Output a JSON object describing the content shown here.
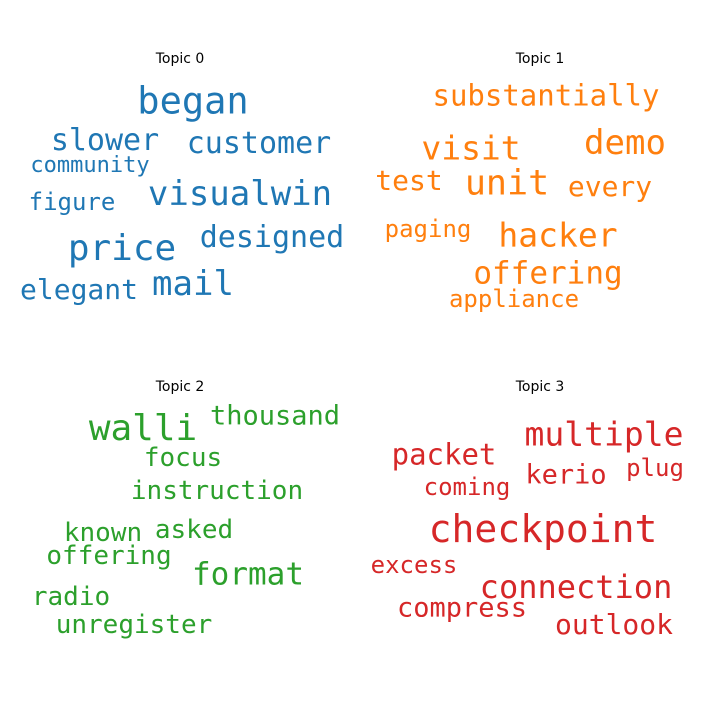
{
  "chart_data": [
    {
      "type": "wordcloud",
      "title": "Topic 0",
      "color": "#1f77b4",
      "words": [
        "began",
        "slower",
        "customer",
        "community",
        "visualwin",
        "figure",
        "price",
        "designed",
        "elegant",
        "mail"
      ]
    },
    {
      "type": "wordcloud",
      "title": "Topic 1",
      "color": "#ff7f0e",
      "words": [
        "substantially",
        "demo",
        "visit",
        "unit",
        "test",
        "every",
        "hacker",
        "paging",
        "offering",
        "appliance"
      ]
    },
    {
      "type": "wordcloud",
      "title": "Topic 2",
      "color": "#2ca02c",
      "words": [
        "walli",
        "thousand",
        "focus",
        "instruction",
        "known",
        "asked",
        "offering",
        "format",
        "radio",
        "unregister"
      ]
    },
    {
      "type": "wordcloud",
      "title": "Topic 3",
      "color": "#d62728",
      "words": [
        "multiple",
        "packet",
        "plug",
        "kerio",
        "coming",
        "checkpoint",
        "excess",
        "connection",
        "compress",
        "outlook"
      ]
    }
  ]
}
